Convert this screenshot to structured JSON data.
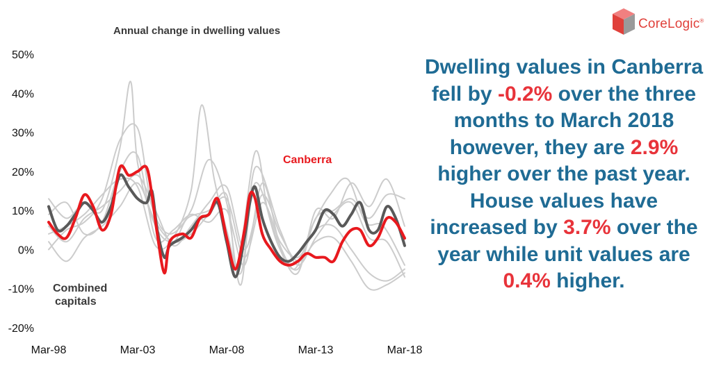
{
  "logo": {
    "text": "CoreLogic",
    "tm": "®"
  },
  "commentary": {
    "parts": [
      {
        "text": "Dwelling values in Canberra fell by ",
        "highlight": false
      },
      {
        "text": "-0.2%",
        "highlight": true
      },
      {
        "text": " over the three months to March 2018 however, they are ",
        "highlight": false
      },
      {
        "text": "2.9%",
        "highlight": true
      },
      {
        "text": " higher over the past year. House values have increased by ",
        "highlight": false
      },
      {
        "text": "3.7%",
        "highlight": true
      },
      {
        "text": " over the year while unit values are ",
        "highlight": false
      },
      {
        "text": "0.4%",
        "highlight": true
      },
      {
        "text": " higher.",
        "highlight": false
      }
    ]
  },
  "colors": {
    "canberra": "#e8191e",
    "combined": "#595959",
    "other_capitals": "#cccccc",
    "commentary": "#1f6b94",
    "highlight": "#e8333a",
    "brand": "#e0403a"
  },
  "chart_data": {
    "type": "line",
    "title": "Annual change in dwelling values",
    "xlabel": "",
    "ylabel": "",
    "x_tick_labels": [
      "Mar-98",
      "Mar-03",
      "Mar-08",
      "Mar-13",
      "Mar-18"
    ],
    "y_tick_labels": [
      "50%",
      "40%",
      "30%",
      "20%",
      "10%",
      "0%",
      "-10%",
      "-20%"
    ],
    "xlim": [
      1998.2,
      2018.2
    ],
    "ylim": [
      -20,
      50
    ],
    "grid": false,
    "annotations": [
      {
        "text": "Canberra",
        "series": "Canberra"
      },
      {
        "text": "Combined capitals",
        "series": "Combined capitals"
      }
    ],
    "series": [
      {
        "name": "Canberra",
        "color": "#e8191e",
        "x": [
          1998.2,
          1998.7,
          1999.2,
          1999.7,
          2000.2,
          2000.7,
          2001.2,
          2001.7,
          2002.2,
          2002.7,
          2003.2,
          2003.7,
          2004.0,
          2004.3,
          2004.7,
          2005.0,
          2005.7,
          2006.2,
          2006.7,
          2007.2,
          2007.7,
          2008.2,
          2008.7,
          2009.2,
          2009.5,
          2009.8,
          2010.2,
          2010.7,
          2011.2,
          2011.7,
          2012.2,
          2012.7,
          2013.2,
          2013.7,
          2014.2,
          2014.7,
          2015.2,
          2015.7,
          2016.2,
          2016.7,
          2017.2,
          2017.7,
          2018.2
        ],
        "values": [
          7,
          4,
          3,
          8,
          14,
          11,
          5,
          9,
          21,
          19,
          20,
          21,
          14,
          4,
          -6,
          2,
          4,
          3,
          8,
          9,
          13,
          3,
          -5,
          5,
          14,
          13,
          4,
          0,
          -3,
          -4,
          -3,
          -1,
          -2,
          -2,
          -3,
          2,
          5,
          5,
          1,
          3,
          8,
          7,
          2.9
        ]
      },
      {
        "name": "Combined capitals",
        "color": "#595959",
        "x": [
          1998.2,
          1998.7,
          1999.2,
          1999.7,
          2000.2,
          2000.7,
          2001.2,
          2001.7,
          2002.2,
          2002.7,
          2003.2,
          2003.7,
          2004.0,
          2004.3,
          2004.7,
          2005.0,
          2005.7,
          2006.2,
          2006.7,
          2007.2,
          2007.7,
          2008.2,
          2008.7,
          2009.2,
          2009.5,
          2009.8,
          2010.2,
          2010.7,
          2011.2,
          2011.7,
          2012.2,
          2012.7,
          2013.2,
          2013.7,
          2014.2,
          2014.7,
          2015.2,
          2015.7,
          2016.2,
          2016.7,
          2017.2,
          2017.7,
          2018.2
        ],
        "values": [
          11,
          5,
          6,
          9,
          12,
          10,
          7,
          11,
          19,
          16,
          13,
          12,
          15,
          5,
          -2,
          1,
          3,
          5,
          8,
          9,
          12,
          2,
          -7,
          3,
          12,
          16,
          8,
          2,
          -2,
          -3,
          -1,
          2,
          5,
          10,
          9,
          6,
          9,
          12,
          5,
          5,
          11,
          8,
          1
        ]
      },
      {
        "name": "",
        "color": "#cccccc",
        "x": [
          1998.2,
          1999.2,
          2000.2,
          2001.2,
          2002.2,
          2002.8,
          2003.2,
          2004.2,
          2005.2,
          2006.0,
          2007.2,
          2008.2,
          2008.8,
          2009.8,
          2010.5,
          2011.2,
          2012.2,
          2013.2,
          2014.2,
          2015.2,
          2016.2,
          2017.2,
          2018.2
        ],
        "values": [
          13,
          8,
          12,
          10,
          26,
          43,
          22,
          6,
          2,
          8,
          10,
          14,
          -4,
          25,
          10,
          0,
          -6,
          10,
          8,
          17,
          11,
          18,
          6
        ]
      },
      {
        "name": "",
        "color": "#cccccc",
        "x": [
          1998.2,
          1999.2,
          2000.2,
          2001.2,
          2002.2,
          2003.2,
          2004.2,
          2005.2,
          2006.2,
          2006.8,
          2007.5,
          2008.2,
          2009.0,
          2009.8,
          2011.0,
          2012.0,
          2013.0,
          2014.0,
          2015.0,
          2016.0,
          2017.0,
          2018.2
        ],
        "values": [
          4,
          6,
          9,
          14,
          18,
          16,
          1,
          3,
          15,
          37,
          18,
          5,
          -6,
          17,
          3,
          -5,
          6,
          14,
          18,
          7,
          6,
          -4
        ]
      },
      {
        "name": "",
        "color": "#cccccc",
        "x": [
          1998.2,
          1999.2,
          2000.2,
          2001.2,
          2002.2,
          2003.2,
          2004.0,
          2005.0,
          2006.2,
          2007.2,
          2008.2,
          2009.0,
          2009.8,
          2011.2,
          2012.2,
          2013.2,
          2014.2,
          2015.2,
          2016.2,
          2017.2,
          2018.2
        ],
        "values": [
          0,
          5,
          7,
          13,
          28,
          31,
          11,
          4,
          10,
          23,
          12,
          -9,
          21,
          5,
          -4,
          3,
          9,
          12,
          3,
          2,
          -7
        ]
      },
      {
        "name": "",
        "color": "#cccccc",
        "x": [
          1998.2,
          1999.2,
          2000.2,
          2001.2,
          2002.2,
          2003.2,
          2004.2,
          2005.2,
          2006.2,
          2007.2,
          2008.2,
          2009.2,
          2010.2,
          2011.2,
          2012.2,
          2013.2,
          2014.2,
          2015.2,
          2016.2,
          2017.2,
          2018.2
        ],
        "values": [
          2,
          -3,
          3,
          6,
          11,
          17,
          7,
          2,
          4,
          9,
          13,
          -2,
          12,
          2,
          -2,
          5,
          6,
          0,
          -6,
          -8,
          -5
        ]
      },
      {
        "name": "",
        "color": "#cccccc",
        "x": [
          1998.2,
          1999.2,
          2000.2,
          2001.2,
          2002.2,
          2003.2,
          2004.2,
          2005.2,
          2006.2,
          2007.2,
          2008.2,
          2009.2,
          2010.2,
          2011.2,
          2012.2,
          2013.2,
          2014.2,
          2015.2,
          2016.2,
          2017.2,
          2018.2
        ],
        "values": [
          6,
          2,
          8,
          11,
          15,
          19,
          10,
          1,
          6,
          12,
          16,
          0,
          14,
          4,
          -3,
          2,
          3,
          -3,
          -10,
          -9,
          -6
        ]
      },
      {
        "name": "",
        "color": "#cccccc",
        "x": [
          1998.2,
          1999.2,
          2000.2,
          2001.2,
          2002.2,
          2003.2,
          2004.2,
          2005.2,
          2006.2,
          2007.2,
          2008.2,
          2009.2,
          2010.2,
          2011.2,
          2012.2,
          2013.2,
          2014.2,
          2015.2,
          2016.2,
          2017.2,
          2018.2
        ],
        "values": [
          9,
          12,
          4,
          7,
          20,
          24,
          3,
          5,
          9,
          7,
          10,
          -4,
          17,
          1,
          -5,
          8,
          10,
          13,
          8,
          14,
          13
        ]
      }
    ]
  }
}
